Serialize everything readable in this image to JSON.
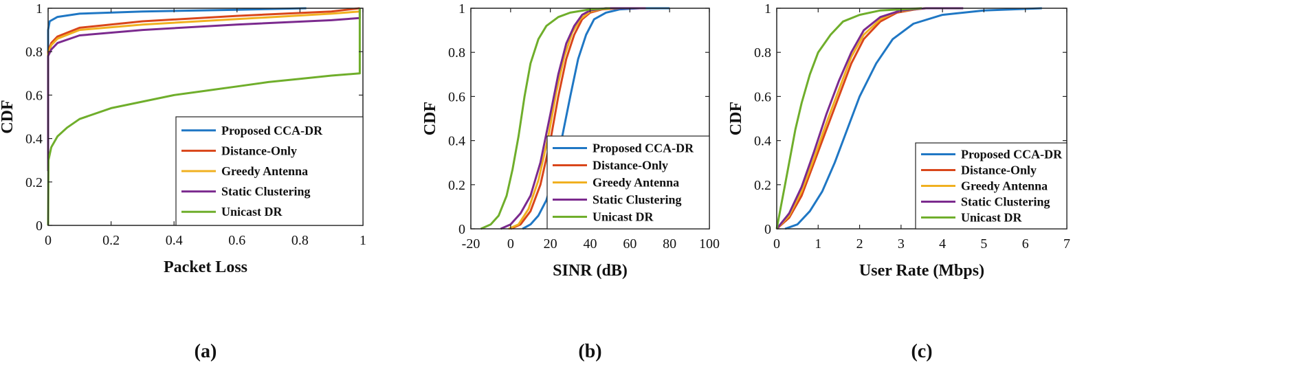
{
  "colors": {
    "Proposed CCA-DR": "#1f77c4",
    "Distance-Only": "#d9461a",
    "Greedy Antenna": "#f0b020",
    "Static Clustering": "#7b2a8e",
    "Unicast DR": "#6fae2b"
  },
  "chart_data": [
    {
      "type": "line",
      "caption_left": "(",
      "caption_mid": "a",
      "caption_right": ")",
      "xlabel": "Packet Loss",
      "ylabel": "CDF",
      "xlim": [
        0,
        1
      ],
      "ylim": [
        0,
        1
      ],
      "xticks": [
        0,
        0.2,
        0.4,
        0.6,
        0.8,
        1
      ],
      "xtick_labels": [
        "0",
        "0.2",
        "0.4",
        "0.6",
        "0.8",
        "1"
      ],
      "yticks": [
        0,
        0.2,
        0.4,
        0.6,
        0.8,
        1
      ],
      "ytick_labels": [
        "0",
        "0.2",
        "0.4",
        "0.6",
        "0.8",
        "1"
      ],
      "grid": false,
      "legend": "bottom-right",
      "series": [
        {
          "name": "Proposed CCA-DR",
          "points": [
            [
              0,
              0.3
            ],
            [
              0,
              0.9
            ],
            [
              0.005,
              0.94
            ],
            [
              0.03,
              0.96
            ],
            [
              0.1,
              0.975
            ],
            [
              0.3,
              0.985
            ],
            [
              0.6,
              0.993
            ],
            [
              0.82,
              1.0
            ]
          ]
        },
        {
          "name": "Distance-Only",
          "points": [
            [
              0,
              0.3
            ],
            [
              0,
              0.8
            ],
            [
              0.01,
              0.84
            ],
            [
              0.03,
              0.87
            ],
            [
              0.1,
              0.91
            ],
            [
              0.3,
              0.94
            ],
            [
              0.6,
              0.965
            ],
            [
              0.9,
              0.985
            ],
            [
              0.99,
              1.0
            ]
          ]
        },
        {
          "name": "Greedy Antenna",
          "points": [
            [
              0,
              0.3
            ],
            [
              0,
              0.79
            ],
            [
              0.01,
              0.83
            ],
            [
              0.03,
              0.86
            ],
            [
              0.1,
              0.9
            ],
            [
              0.3,
              0.925
            ],
            [
              0.6,
              0.95
            ],
            [
              0.9,
              0.975
            ],
            [
              0.99,
              0.985
            ],
            [
              0.99,
              1.0
            ]
          ]
        },
        {
          "name": "Static Clustering",
          "points": [
            [
              0,
              0.25
            ],
            [
              0,
              0.78
            ],
            [
              0.01,
              0.81
            ],
            [
              0.03,
              0.84
            ],
            [
              0.1,
              0.875
            ],
            [
              0.3,
              0.9
            ],
            [
              0.6,
              0.925
            ],
            [
              0.9,
              0.945
            ],
            [
              0.99,
              0.955
            ],
            [
              0.99,
              1.0
            ]
          ]
        },
        {
          "name": "Unicast DR",
          "points": [
            [
              0,
              0.0
            ],
            [
              0.001,
              0.3
            ],
            [
              0.01,
              0.36
            ],
            [
              0.03,
              0.41
            ],
            [
              0.06,
              0.45
            ],
            [
              0.1,
              0.49
            ],
            [
              0.2,
              0.54
            ],
            [
              0.3,
              0.57
            ],
            [
              0.4,
              0.6
            ],
            [
              0.5,
              0.62
            ],
            [
              0.6,
              0.64
            ],
            [
              0.7,
              0.66
            ],
            [
              0.8,
              0.675
            ],
            [
              0.9,
              0.69
            ],
            [
              0.99,
              0.7
            ],
            [
              0.99,
              1.0
            ]
          ]
        }
      ]
    },
    {
      "type": "line",
      "caption_left": "(",
      "caption_mid": "b",
      "caption_right": ")",
      "xlabel": "SINR (dB)",
      "ylabel": "CDF",
      "xlim": [
        -20,
        100
      ],
      "ylim": [
        0,
        1
      ],
      "xticks": [
        -20,
        0,
        20,
        40,
        60,
        80,
        100
      ],
      "xtick_labels": [
        "-20",
        "0",
        "20",
        "40",
        "60",
        "80",
        "100"
      ],
      "yticks": [
        0,
        0.2,
        0.4,
        0.6,
        0.8,
        1
      ],
      "ytick_labels": [
        "0",
        "0.2",
        "0.4",
        "0.6",
        "0.8",
        "1"
      ],
      "grid": false,
      "legend": "bottom-right",
      "series": [
        {
          "name": "Proposed CCA-DR",
          "points": [
            [
              6,
              0
            ],
            [
              10,
              0.02
            ],
            [
              14,
              0.06
            ],
            [
              18,
              0.13
            ],
            [
              22,
              0.25
            ],
            [
              26,
              0.42
            ],
            [
              30,
              0.6
            ],
            [
              34,
              0.77
            ],
            [
              38,
              0.88
            ],
            [
              42,
              0.95
            ],
            [
              48,
              0.98
            ],
            [
              55,
              0.995
            ],
            [
              65,
              1.0
            ],
            [
              80,
              1.0
            ]
          ]
        },
        {
          "name": "Distance-Only",
          "points": [
            [
              0,
              0
            ],
            [
              5,
              0.02
            ],
            [
              10,
              0.08
            ],
            [
              15,
              0.2
            ],
            [
              20,
              0.4
            ],
            [
              24,
              0.6
            ],
            [
              28,
              0.77
            ],
            [
              32,
              0.88
            ],
            [
              36,
              0.95
            ],
            [
              40,
              0.98
            ],
            [
              46,
              0.995
            ],
            [
              55,
              1.0
            ]
          ]
        },
        {
          "name": "Greedy Antenna",
          "points": [
            [
              -1,
              0
            ],
            [
              4,
              0.02
            ],
            [
              9,
              0.09
            ],
            [
              14,
              0.22
            ],
            [
              19,
              0.42
            ],
            [
              23,
              0.62
            ],
            [
              27,
              0.78
            ],
            [
              31,
              0.89
            ],
            [
              35,
              0.95
            ],
            [
              40,
              0.985
            ],
            [
              46,
              0.997
            ],
            [
              55,
              1.0
            ]
          ]
        },
        {
          "name": "Static Clustering",
          "points": [
            [
              -5,
              0
            ],
            [
              0,
              0.02
            ],
            [
              5,
              0.07
            ],
            [
              10,
              0.15
            ],
            [
              15,
              0.3
            ],
            [
              20,
              0.52
            ],
            [
              24,
              0.7
            ],
            [
              28,
              0.84
            ],
            [
              32,
              0.92
            ],
            [
              36,
              0.97
            ],
            [
              40,
              0.99
            ],
            [
              48,
              1.0
            ],
            [
              68,
              1.0
            ]
          ]
        },
        {
          "name": "Unicast DR",
          "points": [
            [
              -15,
              0
            ],
            [
              -10,
              0.02
            ],
            [
              -6,
              0.06
            ],
            [
              -2,
              0.15
            ],
            [
              1,
              0.27
            ],
            [
              4,
              0.42
            ],
            [
              7,
              0.6
            ],
            [
              10,
              0.75
            ],
            [
              14,
              0.86
            ],
            [
              18,
              0.92
            ],
            [
              24,
              0.96
            ],
            [
              30,
              0.98
            ],
            [
              40,
              0.995
            ],
            [
              50,
              1.0
            ]
          ]
        }
      ]
    },
    {
      "type": "line",
      "caption_left": "(",
      "caption_mid": "c",
      "caption_right": ")",
      "xlabel": "User Rate (Mbps)",
      "ylabel": "CDF",
      "xlim": [
        0,
        7
      ],
      "ylim": [
        0,
        1
      ],
      "xticks": [
        0,
        1,
        2,
        3,
        4,
        5,
        6,
        7
      ],
      "xtick_labels": [
        "0",
        "1",
        "2",
        "3",
        "4",
        "5",
        "6",
        "7"
      ],
      "yticks": [
        0,
        0.2,
        0.4,
        0.6,
        0.8,
        1
      ],
      "ytick_labels": [
        "0",
        "0.2",
        "0.4",
        "0.6",
        "0.8",
        "1"
      ],
      "grid": false,
      "legend": "bottom-right",
      "series": [
        {
          "name": "Proposed CCA-DR",
          "points": [
            [
              0.2,
              0
            ],
            [
              0.5,
              0.02
            ],
            [
              0.8,
              0.08
            ],
            [
              1.1,
              0.17
            ],
            [
              1.4,
              0.3
            ],
            [
              1.7,
              0.45
            ],
            [
              2.0,
              0.6
            ],
            [
              2.4,
              0.75
            ],
            [
              2.8,
              0.86
            ],
            [
              3.3,
              0.93
            ],
            [
              4.0,
              0.97
            ],
            [
              5.0,
              0.99
            ],
            [
              6.4,
              1.0
            ]
          ]
        },
        {
          "name": "Distance-Only",
          "points": [
            [
              0,
              0
            ],
            [
              0.3,
              0.05
            ],
            [
              0.6,
              0.15
            ],
            [
              0.9,
              0.3
            ],
            [
              1.2,
              0.45
            ],
            [
              1.5,
              0.6
            ],
            [
              1.8,
              0.75
            ],
            [
              2.1,
              0.86
            ],
            [
              2.5,
              0.94
            ],
            [
              2.9,
              0.98
            ],
            [
              3.5,
              1.0
            ]
          ]
        },
        {
          "name": "Greedy Antenna",
          "points": [
            [
              0,
              0
            ],
            [
              0.3,
              0.06
            ],
            [
              0.6,
              0.17
            ],
            [
              0.9,
              0.32
            ],
            [
              1.2,
              0.48
            ],
            [
              1.5,
              0.63
            ],
            [
              1.8,
              0.78
            ],
            [
              2.1,
              0.88
            ],
            [
              2.5,
              0.95
            ],
            [
              2.9,
              0.985
            ],
            [
              3.6,
              1.0
            ]
          ]
        },
        {
          "name": "Static Clustering",
          "points": [
            [
              0,
              0
            ],
            [
              0.3,
              0.07
            ],
            [
              0.6,
              0.19
            ],
            [
              0.9,
              0.35
            ],
            [
              1.2,
              0.52
            ],
            [
              1.5,
              0.67
            ],
            [
              1.8,
              0.8
            ],
            [
              2.1,
              0.9
            ],
            [
              2.5,
              0.96
            ],
            [
              3.0,
              0.99
            ],
            [
              3.6,
              1.0
            ],
            [
              4.5,
              1.0
            ]
          ]
        },
        {
          "name": "Unicast DR",
          "points": [
            [
              0,
              0
            ],
            [
              0.1,
              0.1
            ],
            [
              0.2,
              0.2
            ],
            [
              0.3,
              0.3
            ],
            [
              0.45,
              0.45
            ],
            [
              0.6,
              0.57
            ],
            [
              0.8,
              0.7
            ],
            [
              1.0,
              0.8
            ],
            [
              1.3,
              0.88
            ],
            [
              1.6,
              0.94
            ],
            [
              2.0,
              0.97
            ],
            [
              2.5,
              0.99
            ],
            [
              3.5,
              1.0
            ]
          ]
        }
      ]
    }
  ]
}
